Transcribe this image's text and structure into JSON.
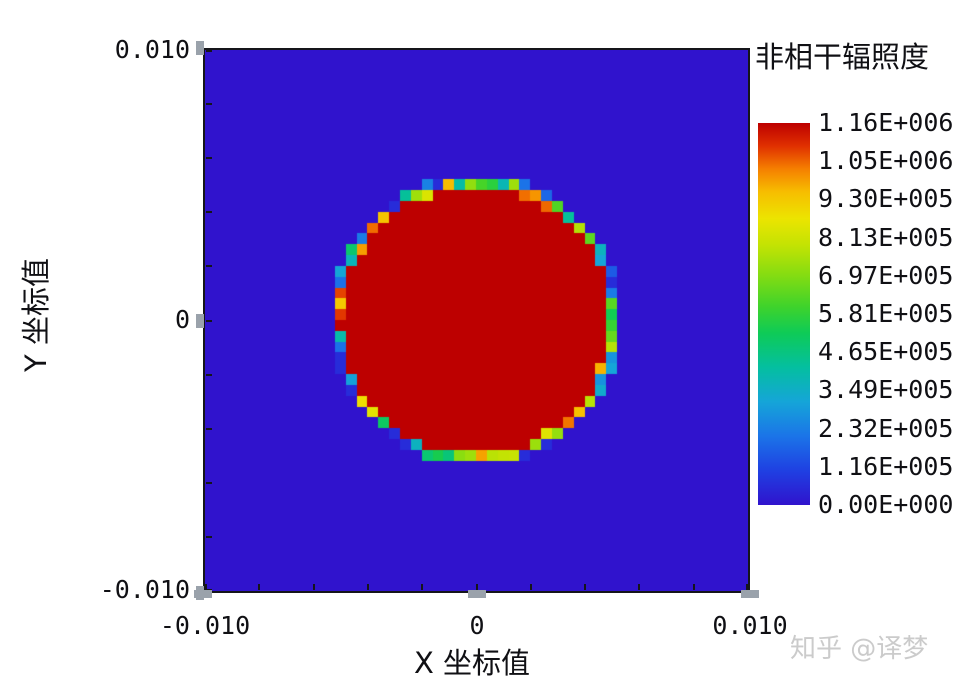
{
  "figure": {
    "colorbar_title": "非相干辐照度",
    "watermark": "知乎 @译梦",
    "x_axis": {
      "label": "X 坐标值",
      "tick_labels": [
        "-0.010",
        "0",
        "0.010"
      ]
    },
    "y_axis": {
      "label": "Y 坐标值",
      "tick_labels": [
        "0.010",
        "0",
        "-0.010"
      ]
    }
  },
  "chart_data": {
    "type": "heatmap",
    "title": "非相干辐照度",
    "xlabel": "X 坐标值",
    "ylabel": "Y 坐标值",
    "x_range": [
      -0.01,
      0.01
    ],
    "y_range": [
      -0.01,
      0.01
    ],
    "x_ticks": [
      -0.01,
      0,
      0.01
    ],
    "y_ticks": [
      -0.01,
      0,
      0.01
    ],
    "minor_tick_step": 0.002,
    "grid_size": 50,
    "value_min": 0,
    "value_max": 1160000,
    "colorbar_labels": [
      "1.16E+006",
      "1.05E+006",
      "9.30E+005",
      "8.13E+005",
      "6.97E+005",
      "5.81E+005",
      "4.65E+005",
      "3.49E+005",
      "2.32E+005",
      "1.16E+005",
      "0.00E+000"
    ],
    "pattern": {
      "description": "uniform circular beam footprint: irradiance ~1.16E+006 inside disk, 0 outside, noisy partial-coverage pixels at the pixelated rim",
      "disk_center": [
        0,
        0
      ],
      "disk_radius": 0.00512,
      "inside_value": 1160000,
      "outside_value": 0
    },
    "colormap": [
      [
        0.0,
        "#3013cd"
      ],
      [
        0.09,
        "#1f40e2"
      ],
      [
        0.18,
        "#1b74e8"
      ],
      [
        0.27,
        "#15a5d8"
      ],
      [
        0.36,
        "#04bfa0"
      ],
      [
        0.45,
        "#0ecb57"
      ],
      [
        0.52,
        "#3fd32b"
      ],
      [
        0.6,
        "#83dc12"
      ],
      [
        0.68,
        "#c3e303"
      ],
      [
        0.75,
        "#ece400"
      ],
      [
        0.82,
        "#f7bd00"
      ],
      [
        0.88,
        "#f57f00"
      ],
      [
        0.94,
        "#e03000"
      ],
      [
        1.0,
        "#bd0000"
      ]
    ]
  }
}
